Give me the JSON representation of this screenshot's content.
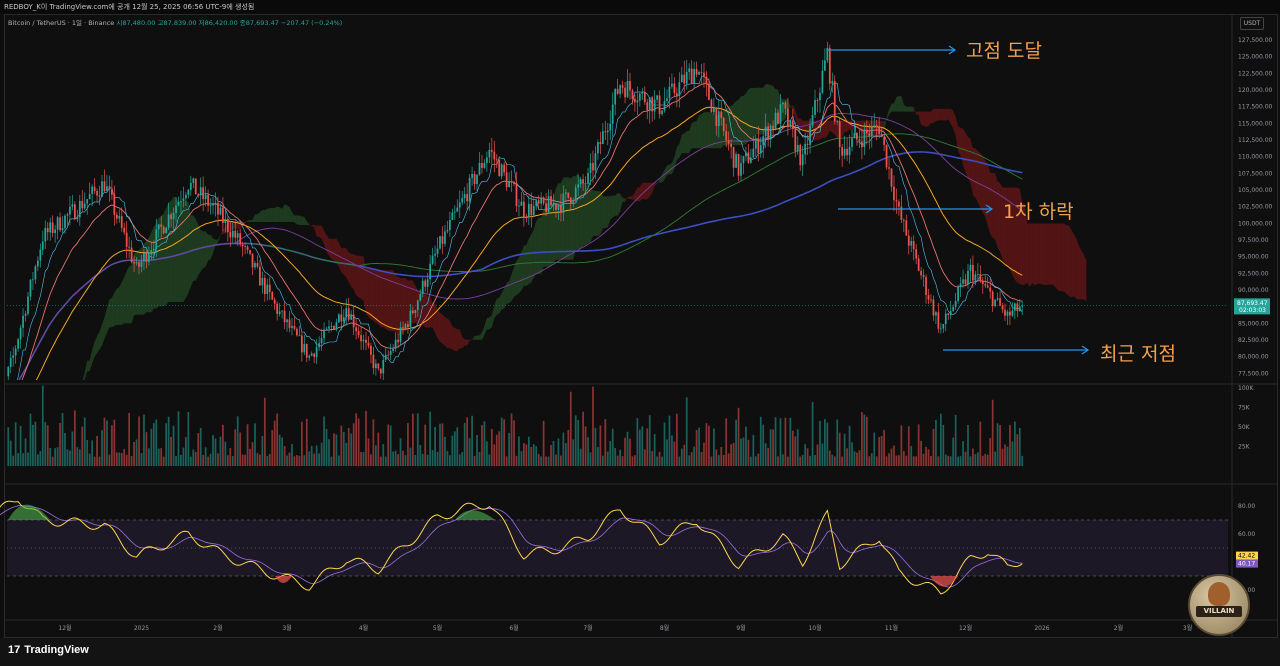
{
  "header": {
    "title_line": "REDBOY_K이 TradingView.com에 공개 12월 25, 2025 06:56 UTC-9에 생성됨"
  },
  "legend": {
    "symbol": "Bitcoin / TetherUS · 1일 · Binance",
    "open": "시87,480.00",
    "high": "고87,839.00",
    "low": "저86,420.00",
    "close": "종87,693.47",
    "change": "−207.47 (−0.24%)"
  },
  "currency": "USDT",
  "footer": {
    "brand": "TradingView"
  },
  "annotations": {
    "ath": "고점 도달",
    "first_drop": "1차 하락",
    "recent_low": "최근 저점"
  },
  "badge": {
    "label": "VILLAIN"
  },
  "colors": {
    "up": "#26a69a",
    "down": "#ef5350",
    "annotation": "#f5a14b",
    "arrow": "#2196f3",
    "rsi": "#ffd54f",
    "rsi_band": "#7e57c2"
  },
  "chart_data": [
    {
      "type": "candlestick",
      "panel": "price",
      "interval": "1D",
      "y_axis_ticks": [
        127500,
        125000,
        122500,
        120000,
        117500,
        115000,
        112500,
        110000,
        107500,
        105000,
        102500,
        100000,
        97500,
        95000,
        92500,
        90000,
        87500,
        85000,
        82500,
        80000,
        77500
      ],
      "y_tick_labels": [
        "127,500.00",
        "125,000.00",
        "122,500.00",
        "120,000.00",
        "117,500.00",
        "115,000.00",
        "112,500.00",
        "110,000.00",
        "107,500.00",
        "105,000.00",
        "102,500.00",
        "100,000.00",
        "97,500.00",
        "95,000.00",
        "92,500.00",
        "90,000.00",
        "87,500.00",
        "85,000.00",
        "82,500.00",
        "80,000.00",
        "77,500.00"
      ],
      "ylim": [
        76500,
        129000
      ],
      "x_tick_labels": [
        "12월",
        "2025",
        "2월",
        "3월",
        "4월",
        "5월",
        "6월",
        "7월",
        "8월",
        "9월",
        "10월",
        "11월",
        "12월",
        "2026",
        "2월",
        "3월"
      ],
      "close_path": [
        [
          "2024-11-01",
          70000
        ],
        [
          "2024-11-10",
          80000
        ],
        [
          "2024-11-22",
          98000
        ],
        [
          "2024-12-05",
          102000
        ],
        [
          "2024-12-17",
          106000
        ],
        [
          "2024-12-30",
          93000
        ],
        [
          "2025-01-20",
          106000
        ],
        [
          "2025-01-31",
          102000
        ],
        [
          "2025-02-10",
          97000
        ],
        [
          "2025-02-25",
          87000
        ],
        [
          "2025-03-10",
          80000
        ],
        [
          "2025-03-25",
          87500
        ],
        [
          "2025-04-07",
          77500
        ],
        [
          "2025-04-20",
          86000
        ],
        [
          "2025-05-01",
          96000
        ],
        [
          "2025-05-12",
          104000
        ],
        [
          "2025-05-22",
          111000
        ],
        [
          "2025-06-05",
          102000
        ],
        [
          "2025-06-20",
          103000
        ],
        [
          "2025-07-01",
          106500
        ],
        [
          "2025-07-14",
          121000
        ],
        [
          "2025-07-30",
          117500
        ],
        [
          "2025-08-14",
          123500
        ],
        [
          "2025-08-31",
          108000
        ],
        [
          "2025-09-18",
          117000
        ],
        [
          "2025-09-26",
          109000
        ],
        [
          "2025-10-06",
          125500
        ],
        [
          "2025-10-11",
          111000
        ],
        [
          "2025-10-27",
          114500
        ],
        [
          "2025-11-04",
          101500
        ],
        [
          "2025-11-21",
          84000
        ],
        [
          "2025-12-03",
          93000
        ],
        [
          "2025-12-18",
          86000
        ],
        [
          "2025-12-24",
          87693.47
        ]
      ],
      "last_price": "87,693.47",
      "countdown": "02:03:03",
      "indicators": [
        "Ichimoku cloud",
        "EMA 20",
        "EMA 50",
        "SMA 100",
        "SMA 200",
        "SMA 365"
      ]
    },
    {
      "type": "bar",
      "panel": "volume",
      "y_tick_labels": [
        "100K",
        "75K",
        "50K",
        "25K"
      ],
      "ylim": [
        0,
        100000
      ]
    },
    {
      "type": "line",
      "panel": "rsi",
      "y_tick_labels": [
        "80.00",
        "60.00",
        "40.00",
        "20.00"
      ],
      "ylim": [
        10,
        90
      ],
      "band": [
        30,
        70
      ],
      "rsi_value": "42.42",
      "rsi_ma_value": "40.17",
      "path": [
        [
          "2024-11-01",
          72
        ],
        [
          "2024-11-12",
          86
        ],
        [
          "2024-11-22",
          70
        ],
        [
          "2024-12-05",
          68
        ],
        [
          "2024-12-17",
          66
        ],
        [
          "2024-12-30",
          44
        ],
        [
          "2025-01-20",
          60
        ],
        [
          "2025-02-03",
          45
        ],
        [
          "2025-02-25",
          30
        ],
        [
          "2025-03-10",
          23
        ],
        [
          "2025-03-25",
          42
        ],
        [
          "2025-04-07",
          35
        ],
        [
          "2025-04-20",
          55
        ],
        [
          "2025-05-01",
          72
        ],
        [
          "2025-05-12",
          78
        ],
        [
          "2025-05-22",
          82
        ],
        [
          "2025-06-05",
          45
        ],
        [
          "2025-06-20",
          50
        ],
        [
          "2025-07-01",
          58
        ],
        [
          "2025-07-14",
          78
        ],
        [
          "2025-07-30",
          55
        ],
        [
          "2025-08-14",
          70
        ],
        [
          "2025-08-31",
          38
        ],
        [
          "2025-09-18",
          58
        ],
        [
          "2025-09-26",
          40
        ],
        [
          "2025-10-06",
          74
        ],
        [
          "2025-10-11",
          38
        ],
        [
          "2025-10-27",
          58
        ],
        [
          "2025-11-04",
          32
        ],
        [
          "2025-11-21",
          18
        ],
        [
          "2025-12-03",
          42
        ],
        [
          "2025-12-10",
          48
        ],
        [
          "2025-12-18",
          36
        ],
        [
          "2025-12-24",
          42
        ]
      ]
    }
  ]
}
